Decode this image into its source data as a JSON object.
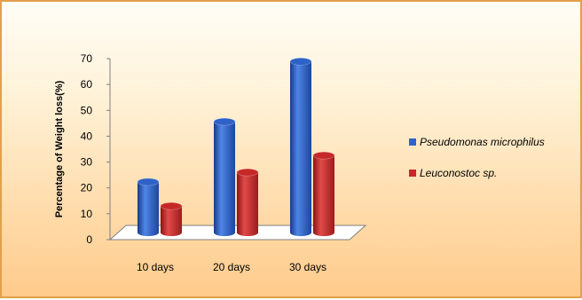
{
  "chart_data": {
    "type": "bar",
    "categories": [
      "10 days",
      "20 days",
      "30 days"
    ],
    "series": [
      {
        "name": "Pseudomonas microphilus",
        "values": [
          21,
          46,
          71
        ],
        "color": "#2f62c8"
      },
      {
        "name": "Leuconostoc sp.",
        "values": [
          11,
          25,
          32
        ],
        "color": "#c62828"
      }
    ],
    "ylabel": "Percentage of Weight loss(%)",
    "ylim": [
      0,
      70
    ],
    "yticks": [
      0,
      10,
      20,
      30,
      40,
      50,
      60,
      70
    ],
    "legend_position": "right",
    "style": "3d-cylinder"
  }
}
